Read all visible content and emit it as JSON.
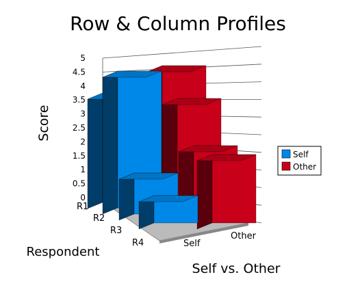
{
  "chart_data": {
    "type": "bar",
    "title": "Row & Column Profiles",
    "ylabel": "Score",
    "xlabel": "Self vs. Other",
    "zlabel": "Respondent",
    "ylim": [
      0,
      5
    ],
    "y_ticks": [
      "0",
      "0.5",
      "1",
      "1.5",
      "2",
      "2.5",
      "3",
      "3.5",
      "4",
      "4.5",
      "5"
    ],
    "respondents": [
      "R1",
      "R2",
      "R3",
      "R4"
    ],
    "groups": [
      "Self",
      "Other"
    ],
    "series": [
      {
        "name": "Self",
        "color": "#0088e8",
        "values": [
          4.0,
          5.0,
          1.5,
          1.0
        ]
      },
      {
        "name": "Other",
        "color": "#c8001a",
        "values": [
          5.0,
          4.0,
          2.5,
          2.5
        ]
      }
    ],
    "legend": {
      "position": "right",
      "entries": [
        "Self",
        "Other"
      ]
    },
    "grid": true
  }
}
